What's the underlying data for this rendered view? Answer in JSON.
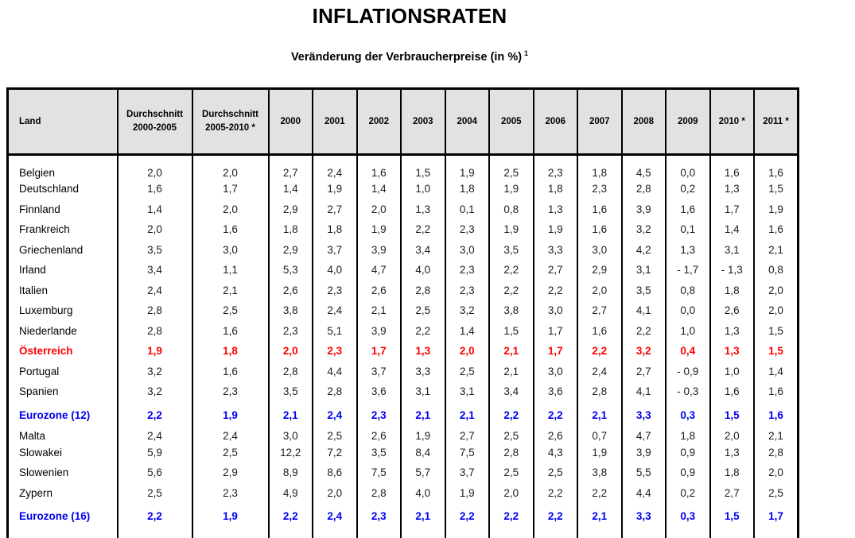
{
  "page": {
    "title": "INFLATIONSRATEN",
    "subtitle": "Veränderung der Verbraucherpreise (in %)",
    "footnote_mark": "1"
  },
  "table": {
    "columns": [
      {
        "key": "land",
        "label": "Land"
      },
      {
        "key": "avg-2000-2005",
        "label": "Durchschnitt\n2000-2005"
      },
      {
        "key": "avg-2005-2010",
        "label": "Durchschnitt\n2005-2010 *"
      },
      {
        "key": "2000",
        "label": "2000"
      },
      {
        "key": "2001",
        "label": "2001"
      },
      {
        "key": "2002",
        "label": "2002"
      },
      {
        "key": "2003",
        "label": "2003"
      },
      {
        "key": "2004",
        "label": "2004"
      },
      {
        "key": "2005",
        "label": "2005"
      },
      {
        "key": "2006",
        "label": "2006"
      },
      {
        "key": "2007",
        "label": "2007"
      },
      {
        "key": "2008",
        "label": "2008"
      },
      {
        "key": "2009",
        "label": "2009"
      },
      {
        "key": "2010",
        "label": "2010 *"
      },
      {
        "key": "2011",
        "label": "2011 *"
      }
    ],
    "rows": [
      {
        "land": "Belgien",
        "color": "default",
        "gap_before": false,
        "values": [
          "2,0",
          "2,0",
          "2,7",
          "2,4",
          "1,6",
          "1,5",
          "1,9",
          "2,5",
          "2,3",
          "1,8",
          "4,5",
          "0,0",
          "1,6",
          "1,6"
        ]
      },
      {
        "land": "Deutschland",
        "color": "default",
        "gap_before": false,
        "values": [
          "1,6",
          "1,7",
          "1,4",
          "1,9",
          "1,4",
          "1,0",
          "1,8",
          "1,9",
          "1,8",
          "2,3",
          "2,8",
          "0,2",
          "1,3",
          "1,5"
        ]
      },
      {
        "land": "Finnland",
        "color": "default",
        "gap_before": false,
        "values": [
          "1,4",
          "2,0",
          "2,9",
          "2,7",
          "2,0",
          "1,3",
          "0,1",
          "0,8",
          "1,3",
          "1,6",
          "3,9",
          "1,6",
          "1,7",
          "1,9"
        ]
      },
      {
        "land": "Frankreich",
        "color": "default",
        "gap_before": false,
        "values": [
          "2,0",
          "1,6",
          "1,8",
          "1,8",
          "1,9",
          "2,2",
          "2,3",
          "1,9",
          "1,9",
          "1,6",
          "3,2",
          "0,1",
          "1,4",
          "1,6"
        ]
      },
      {
        "land": "Griechenland",
        "color": "default",
        "gap_before": false,
        "values": [
          "3,5",
          "3,0",
          "2,9",
          "3,7",
          "3,9",
          "3,4",
          "3,0",
          "3,5",
          "3,3",
          "3,0",
          "4,2",
          "1,3",
          "3,1",
          "2,1"
        ]
      },
      {
        "land": "Irland",
        "color": "default",
        "gap_before": false,
        "values": [
          "3,4",
          "1,1",
          "5,3",
          "4,0",
          "4,7",
          "4,0",
          "2,3",
          "2,2",
          "2,7",
          "2,9",
          "3,1",
          "- 1,7",
          "- 1,3",
          "0,8"
        ]
      },
      {
        "land": "Italien",
        "color": "default",
        "gap_before": false,
        "values": [
          "2,4",
          "2,1",
          "2,6",
          "2,3",
          "2,6",
          "2,8",
          "2,3",
          "2,2",
          "2,2",
          "2,0",
          "3,5",
          "0,8",
          "1,8",
          "2,0"
        ]
      },
      {
        "land": "Luxemburg",
        "color": "default",
        "gap_before": false,
        "values": [
          "2,8",
          "2,5",
          "3,8",
          "2,4",
          "2,1",
          "2,5",
          "3,2",
          "3,8",
          "3,0",
          "2,7",
          "4,1",
          "0,0",
          "2,6",
          "2,0"
        ]
      },
      {
        "land": "Niederlande",
        "color": "default",
        "gap_before": false,
        "values": [
          "2,8",
          "1,6",
          "2,3",
          "5,1",
          "3,9",
          "2,2",
          "1,4",
          "1,5",
          "1,7",
          "1,6",
          "2,2",
          "1,0",
          "1,3",
          "1,5"
        ]
      },
      {
        "land": "Österreich",
        "color": "red",
        "gap_before": false,
        "values": [
          "1,9",
          "1,8",
          "2,0",
          "2,3",
          "1,7",
          "1,3",
          "2,0",
          "2,1",
          "1,7",
          "2,2",
          "3,2",
          "0,4",
          "1,3",
          "1,5"
        ]
      },
      {
        "land": "Portugal",
        "color": "default",
        "gap_before": false,
        "values": [
          "3,2",
          "1,6",
          "2,8",
          "4,4",
          "3,7",
          "3,3",
          "2,5",
          "2,1",
          "3,0",
          "2,4",
          "2,7",
          "- 0,9",
          "1,0",
          "1,4"
        ]
      },
      {
        "land": "Spanien",
        "color": "default",
        "gap_before": false,
        "values": [
          "3,2",
          "2,3",
          "3,5",
          "2,8",
          "3,6",
          "3,1",
          "3,1",
          "3,4",
          "3,6",
          "2,8",
          "4,1",
          "- 0,3",
          "1,6",
          "1,6"
        ]
      },
      {
        "land": "Eurozone (12)",
        "color": "blue",
        "gap_before": true,
        "values": [
          "2,2",
          "1,9",
          "2,1",
          "2,4",
          "2,3",
          "2,1",
          "2,1",
          "2,2",
          "2,2",
          "2,1",
          "3,3",
          "0,3",
          "1,5",
          "1,6"
        ]
      },
      {
        "land": "Malta",
        "color": "default",
        "gap_before": true,
        "values": [
          "2,4",
          "2,4",
          "3,0",
          "2,5",
          "2,6",
          "1,9",
          "2,7",
          "2,5",
          "2,6",
          "0,7",
          "4,7",
          "1,8",
          "2,0",
          "2,1"
        ]
      },
      {
        "land": "Slowakei",
        "color": "default",
        "gap_before": false,
        "values": [
          "5,9",
          "2,5",
          "12,2",
          "7,2",
          "3,5",
          "8,4",
          "7,5",
          "2,8",
          "4,3",
          "1,9",
          "3,9",
          "0,9",
          "1,3",
          "2,8"
        ]
      },
      {
        "land": "Slowenien",
        "color": "default",
        "gap_before": false,
        "values": [
          "5,6",
          "2,9",
          "8,9",
          "8,6",
          "7,5",
          "5,7",
          "3,7",
          "2,5",
          "2,5",
          "3,8",
          "5,5",
          "0,9",
          "1,8",
          "2,0"
        ]
      },
      {
        "land": "Zypern",
        "color": "default",
        "gap_before": false,
        "values": [
          "2,5",
          "2,3",
          "4,9",
          "2,0",
          "2,8",
          "4,0",
          "1,9",
          "2,0",
          "2,2",
          "2,2",
          "4,4",
          "0,2",
          "2,7",
          "2,5"
        ]
      },
      {
        "land": "Eurozone (16)",
        "color": "blue",
        "gap_before": true,
        "values": [
          "2,2",
          "1,9",
          "2,2",
          "2,4",
          "2,3",
          "2,1",
          "2,2",
          "2,2",
          "2,2",
          "2,1",
          "3,3",
          "0,3",
          "1,5",
          "1,7"
        ]
      }
    ]
  }
}
